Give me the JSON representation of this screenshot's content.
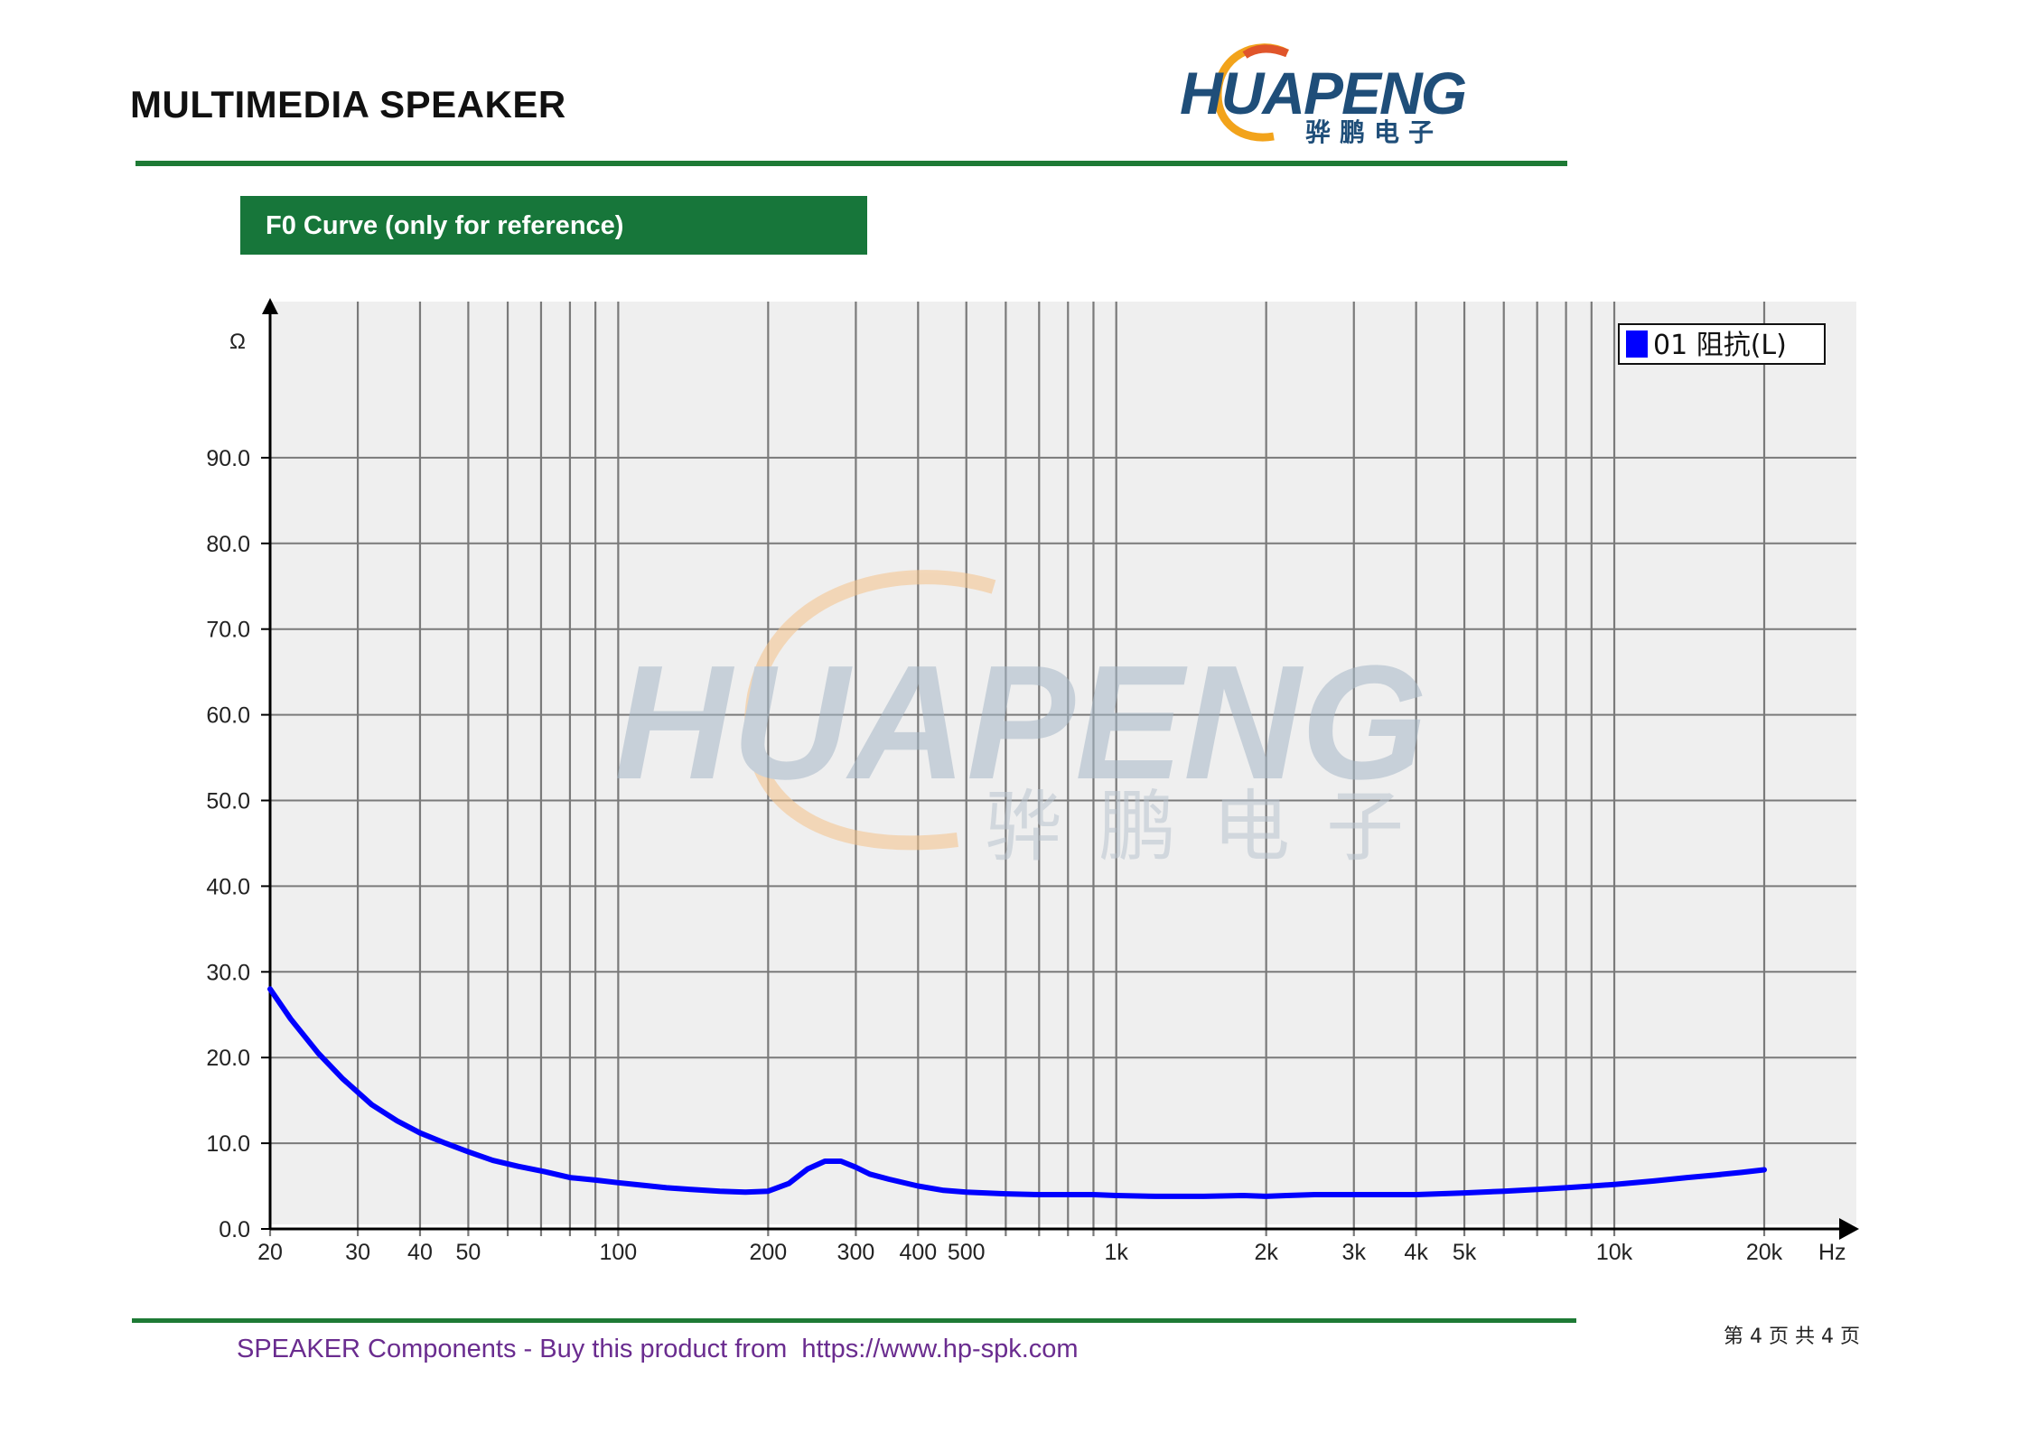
{
  "header": {
    "title": "MULTIMEDIA SPEAKER",
    "logo_text": "HUAPENG",
    "logo_cn": "骅鹏电子"
  },
  "section": {
    "label": "F0 Curve (only for reference)"
  },
  "chart_data": {
    "type": "line",
    "xscale": "log",
    "xlim": [
      20,
      20000
    ],
    "ylim": [
      0,
      100
    ],
    "y_ticks": [
      0,
      10,
      20,
      30,
      40,
      50,
      60,
      70,
      80,
      90
    ],
    "y_tick_labels": [
      "0.0",
      "10.0",
      "20.0",
      "30.0",
      "40.0",
      "50.0",
      "60.0",
      "70.0",
      "80.0",
      "90.0"
    ],
    "x_ticks": [
      20,
      30,
      40,
      50,
      100,
      200,
      300,
      400,
      500,
      1000,
      2000,
      3000,
      4000,
      5000,
      10000,
      20000
    ],
    "x_tick_labels": [
      "20",
      "30",
      "40",
      "50",
      "100",
      "200",
      "300",
      "400",
      "500",
      "1k",
      "2k",
      "3k",
      "4k",
      "5k",
      "10k",
      "20k"
    ],
    "x_unit": "Hz",
    "y_unit": "Ω",
    "grid": true,
    "legend_position": "top-right",
    "series": [
      {
        "name": "01 阻抗(L)",
        "color": "#0000ff",
        "x": [
          20,
          22,
          25,
          28,
          32,
          36,
          40,
          45,
          50,
          56,
          63,
          71,
          80,
          90,
          100,
          112,
          125,
          140,
          160,
          180,
          200,
          220,
          240,
          260,
          280,
          300,
          320,
          350,
          400,
          450,
          500,
          600,
          700,
          800,
          900,
          1000,
          1200,
          1500,
          1800,
          2000,
          2200,
          2500,
          3000,
          3500,
          4000,
          5000,
          6000,
          7000,
          8000,
          9000,
          10000,
          12000,
          14000,
          16000,
          18000,
          20000
        ],
        "y": [
          28,
          24.5,
          20.5,
          17.5,
          14.5,
          12.6,
          11.2,
          10,
          9,
          8,
          7.3,
          6.7,
          6,
          5.7,
          5.4,
          5.1,
          4.8,
          4.6,
          4.4,
          4.3,
          4.4,
          5.3,
          7,
          7.9,
          7.9,
          7.2,
          6.4,
          5.8,
          5,
          4.5,
          4.3,
          4.1,
          4,
          4,
          4,
          3.9,
          3.8,
          3.8,
          3.9,
          3.8,
          3.9,
          4,
          4,
          4,
          4,
          4.2,
          4.4,
          4.6,
          4.8,
          5,
          5.2,
          5.6,
          6,
          6.3,
          6.6,
          6.9
        ]
      }
    ]
  },
  "footer": {
    "text": "SPEAKER Components - Buy this product from  https://www.hp-spk.com",
    "page_count": "第 4 页 共 4 页"
  }
}
